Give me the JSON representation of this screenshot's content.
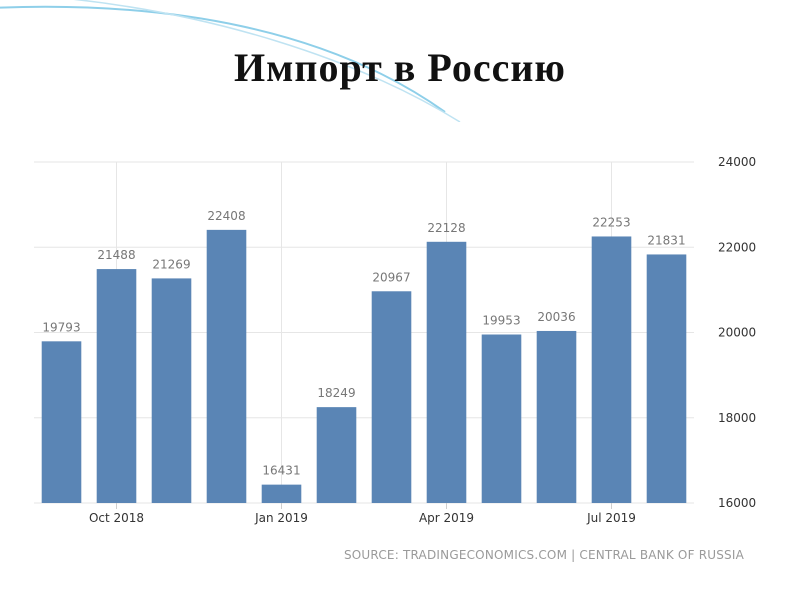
{
  "slide": {
    "title": "Импорт в Россию"
  },
  "chart_data": {
    "type": "bar",
    "title": "",
    "xlabel": "",
    "ylabel": "",
    "categories": [
      "Sep 2018",
      "Oct 2018",
      "Nov 2018",
      "Dec 2018",
      "Jan 2019",
      "Feb 2019",
      "Mar 2019",
      "Apr 2019",
      "May 2019",
      "Jun 2019",
      "Jul 2019",
      "Aug 2019"
    ],
    "values": [
      19793,
      21488,
      21269,
      22408,
      16431,
      18249,
      20967,
      22128,
      19953,
      20036,
      22253,
      21831
    ],
    "x_tick_labels": [
      {
        "category": "Oct 2018",
        "label": "Oct 2018"
      },
      {
        "category": "Jan 2019",
        "label": "Jan 2019"
      },
      {
        "category": "Apr 2019",
        "label": "Apr 2019"
      },
      {
        "category": "Jul 2019",
        "label": "Jul 2019"
      }
    ],
    "y_ticks": [
      16000,
      18000,
      20000,
      22000,
      24000
    ],
    "ylim": [
      16000,
      24000
    ],
    "y_axis_position": "right",
    "grid": true,
    "bar_color": "#5a85b5",
    "source": "SOURCE: TRADINGECONOMICS.COM | CENTRAL BANK OF RUSSIA"
  }
}
